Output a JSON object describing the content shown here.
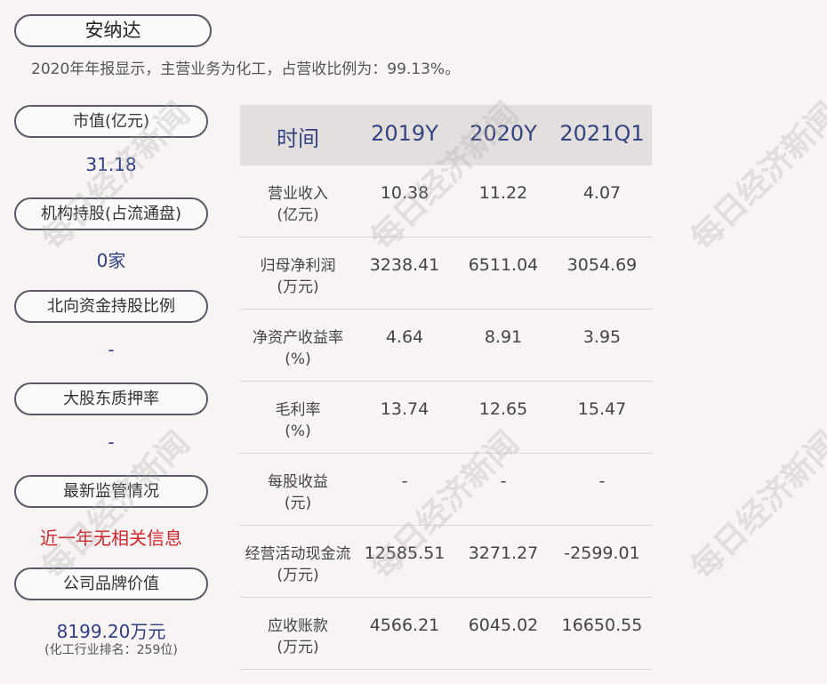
{
  "header": {
    "company": "安纳达",
    "summary": "2020年年报显示，主营业务为化工，占营收比例为：99.13%。"
  },
  "metrics": [
    {
      "label": "市值(亿元)",
      "value": "31.18"
    },
    {
      "label": "机构持股(占流通盘)",
      "value": "0家"
    },
    {
      "label": "北向资金持股比例",
      "value": "-"
    },
    {
      "label": "大股东质押率",
      "value": "-"
    },
    {
      "label": "最新监管情况",
      "value": "近一年无相关信息"
    },
    {
      "label": "公司品牌价值",
      "value": "8199.20万元",
      "note": "(化工行业排名：259位)"
    }
  ],
  "table": {
    "columns": [
      "时间",
      "2019Y",
      "2020Y",
      "2021Q1"
    ],
    "rows": [
      {
        "label": "营业收入",
        "unit": "(亿元)",
        "values": [
          "10.38",
          "11.22",
          "4.07"
        ]
      },
      {
        "label": "归母净利润",
        "unit": "(万元)",
        "values": [
          "3238.41",
          "6511.04",
          "3054.69"
        ]
      },
      {
        "label": "净资产收益率",
        "unit": "(%)",
        "values": [
          "4.64",
          "8.91",
          "3.95"
        ]
      },
      {
        "label": "毛利率",
        "unit": "(%)",
        "values": [
          "13.74",
          "12.65",
          "15.47"
        ]
      },
      {
        "label": "每股收益",
        "unit": "(元)",
        "values": [
          "-",
          "-",
          "-"
        ]
      },
      {
        "label": "经营活动现金流",
        "unit": "(万元)",
        "values": [
          "12585.51",
          "3271.27",
          "-2599.01"
        ]
      },
      {
        "label": "应收账款",
        "unit": "(万元)",
        "values": [
          "4566.21",
          "6045.02",
          "16650.55"
        ]
      }
    ]
  },
  "watermark": "每日经济新闻"
}
